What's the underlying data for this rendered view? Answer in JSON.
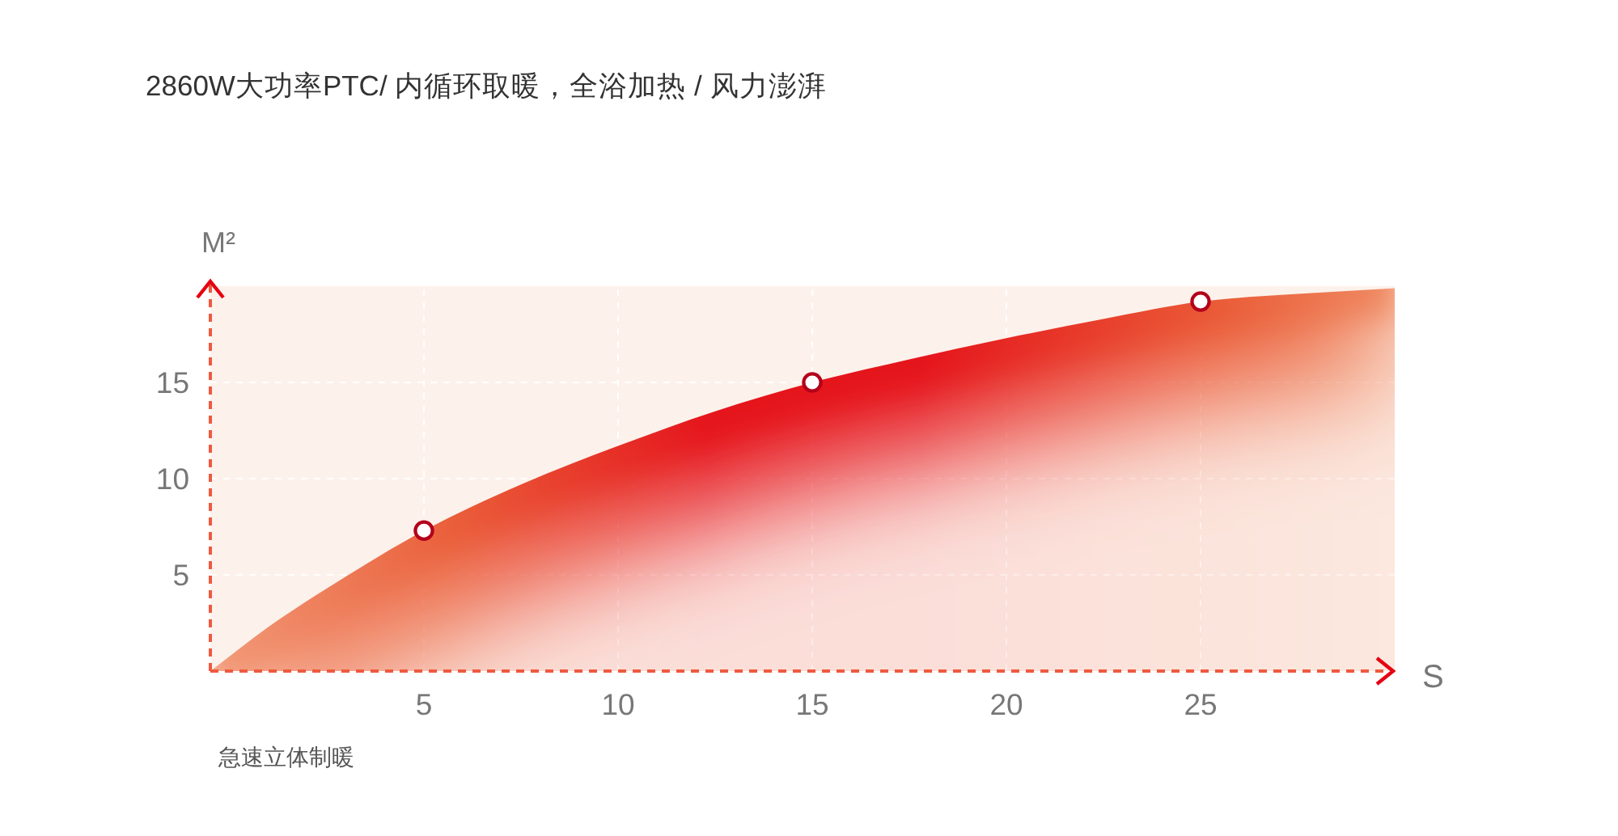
{
  "chart_data": {
    "type": "area",
    "title": "2860W大功率PTC/ 内循环取暖，全浴加热 / 风力澎湃",
    "xlabel": "S",
    "ylabel": "M²",
    "annotations": [
      "急速立体制暖"
    ],
    "xlim": [
      -0.5,
      30
    ],
    "ylim": [
      0,
      20
    ],
    "xticks": [
      5,
      10,
      15,
      20,
      25
    ],
    "yticks": [
      5,
      10,
      15
    ],
    "grid": true,
    "series": [
      {
        "color": "#e5141b",
        "x": [
          -0.5,
          1,
          2.5,
          5,
          7.5,
          10,
          12.5,
          15,
          17.5,
          20,
          22.5,
          25,
          27.5,
          30
        ],
        "values": [
          0,
          2.3,
          4.3,
          7.3,
          9.7,
          11.7,
          13.5,
          15,
          16.2,
          17.3,
          18.3,
          19.2,
          19.6,
          19.9
        ]
      },
      {
        "type": "scatter",
        "color": "#b3001b",
        "marker": "circle",
        "x": [
          5,
          15,
          25
        ],
        "values": [
          7.3,
          15,
          19.2
        ]
      }
    ]
  }
}
